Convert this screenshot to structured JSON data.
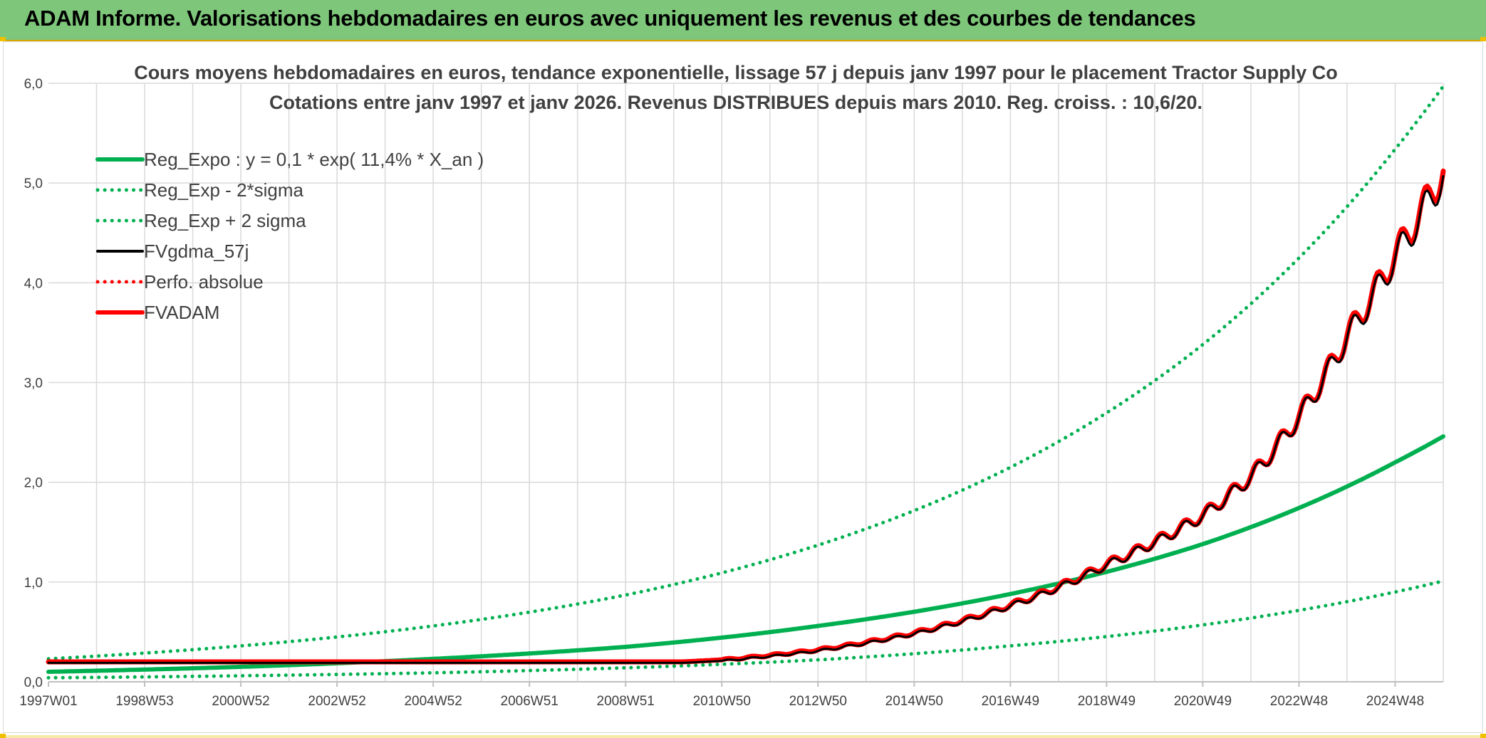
{
  "header": {
    "title": "ADAM Informe. Valorisations hebdomadaires en euros avec uniquement les revenus et des courbes de tendances"
  },
  "colors": {
    "header_bg": "#7dc67a",
    "green": "#00b050",
    "red": "#ff0000",
    "black": "#000000",
    "grid": "#d9d9d9"
  },
  "chart_data": {
    "type": "line",
    "title_line1": "Cours moyens hebdomadaires en euros, tendance exponentielle, lissage 57 j depuis janv 1997 pour le placement Tractor Supply Co",
    "title_line2": "Cotations entre janv 1997 et janv 2026. Revenus DISTRIBUES depuis mars 2010. Reg. croiss. : 10,6/20.",
    "xlabel": "",
    "ylabel": "",
    "x_range_years": [
      1997.0,
      2026.0
    ],
    "ylim": [
      0,
      6
    ],
    "y_ticks": [
      "0,0",
      "1,0",
      "2,0",
      "3,0",
      "4,0",
      "5,0",
      "6,0"
    ],
    "x_ticks": [
      {
        "label": "1997W01",
        "year": 1997.0
      },
      {
        "label": "1998W53",
        "year": 1999.0
      },
      {
        "label": "2000W52",
        "year": 2001.0
      },
      {
        "label": "2002W52",
        "year": 2003.0
      },
      {
        "label": "2004W52",
        "year": 2005.0
      },
      {
        "label": "2006W51",
        "year": 2007.0
      },
      {
        "label": "2008W51",
        "year": 2009.0
      },
      {
        "label": "2010W50",
        "year": 2011.0
      },
      {
        "label": "2012W50",
        "year": 2013.0
      },
      {
        "label": "2014W50",
        "year": 2015.0
      },
      {
        "label": "2016W49",
        "year": 2017.0
      },
      {
        "label": "2018W49",
        "year": 2019.0
      },
      {
        "label": "2020W49",
        "year": 2021.0
      },
      {
        "label": "2022W48",
        "year": 2023.0
      },
      {
        "label": "2024W48",
        "year": 2025.0
      }
    ],
    "grid": true,
    "legend_position": "top-left",
    "series": [
      {
        "name": "Reg_Expo : y = 0,1 * exp( 11,4% *  X_an )",
        "style": "solid",
        "color": "#00b050",
        "x": [
          1997,
          2001,
          2005,
          2009,
          2013,
          2017,
          2021,
          2025,
          2026
        ],
        "values": [
          0.1,
          0.15,
          0.23,
          0.35,
          0.56,
          0.88,
          1.38,
          2.2,
          2.46
        ]
      },
      {
        "name": "Reg_Exp - 2*sigma",
        "style": "dotted",
        "color": "#00b050",
        "x": [
          1997,
          2001,
          2005,
          2009,
          2013,
          2017,
          2021,
          2025,
          2026
        ],
        "values": [
          0.04,
          0.06,
          0.09,
          0.14,
          0.22,
          0.36,
          0.57,
          0.9,
          1.01
        ]
      },
      {
        "name": "Reg_Exp + 2 sigma",
        "style": "dotted",
        "color": "#00b050",
        "x": [
          1997,
          2001,
          2005,
          2009,
          2013,
          2017,
          2021,
          2025,
          2026
        ],
        "values": [
          0.23,
          0.36,
          0.56,
          0.87,
          1.37,
          2.15,
          3.38,
          5.34,
          5.97
        ]
      },
      {
        "name": "FVgdma_57j",
        "style": "solid",
        "color": "#000000",
        "x": [
          1997,
          2001,
          2005,
          2009,
          2010.2,
          2011,
          2013,
          2015,
          2017,
          2019,
          2021,
          2022,
          2023,
          2024,
          2025,
          2026
        ],
        "values": [
          0.19,
          0.19,
          0.19,
          0.19,
          0.19,
          0.21,
          0.31,
          0.48,
          0.76,
          1.17,
          1.66,
          2.05,
          2.65,
          3.45,
          4.25,
          5.07
        ]
      },
      {
        "name": "Perfo. absolue",
        "style": "dotted",
        "color": "#ff0000",
        "x": [
          1997,
          2001,
          2005,
          2009,
          2010.2,
          2011,
          2013,
          2015,
          2017,
          2019,
          2021,
          2022,
          2023,
          2024,
          2025,
          2026
        ],
        "values": [
          0.2,
          0.2,
          0.2,
          0.2,
          0.2,
          0.22,
          0.32,
          0.49,
          0.77,
          1.18,
          1.67,
          2.06,
          2.66,
          3.47,
          4.28,
          5.1
        ]
      },
      {
        "name": "FVADAM",
        "style": "solid",
        "color": "#ff0000",
        "x": [
          1997,
          2001,
          2005,
          2009,
          2010.2,
          2011,
          2013,
          2015,
          2017,
          2019,
          2021,
          2022,
          2023,
          2024,
          2025,
          2026
        ],
        "values": [
          0.2,
          0.2,
          0.2,
          0.2,
          0.2,
          0.22,
          0.32,
          0.49,
          0.77,
          1.18,
          1.67,
          2.06,
          2.66,
          3.47,
          4.28,
          5.12
        ]
      }
    ]
  }
}
